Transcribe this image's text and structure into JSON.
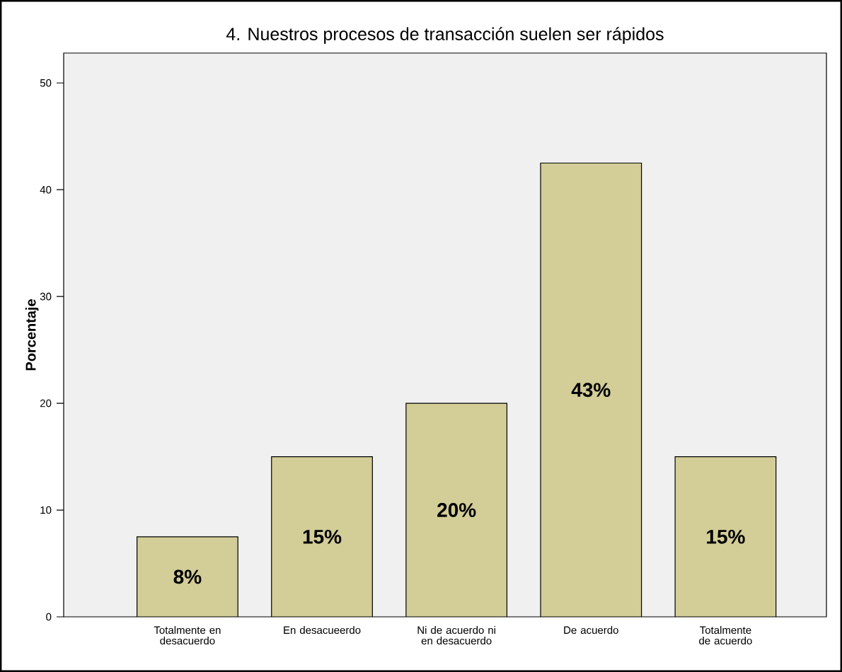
{
  "chart_data": {
    "type": "bar",
    "title": "4. Nuestros procesos de transacción suelen ser rápidos",
    "ylabel": "Porcentaje",
    "categories": [
      "Totalmente en desacuerdo",
      "En desacueerdo",
      "Ni de acuerdo ni en desacuerdo",
      "De acuerdo",
      "Totalmente de acuerdo"
    ],
    "values": [
      7.5,
      15,
      20,
      42.5,
      15
    ],
    "value_labels": [
      "8%",
      "15%",
      "20%",
      "43%",
      "15%"
    ],
    "color": "#d3cd98",
    "ylim": [
      0,
      52.8
    ],
    "yticks": [
      0,
      10,
      20,
      30,
      40,
      50
    ],
    "grid": false
  }
}
